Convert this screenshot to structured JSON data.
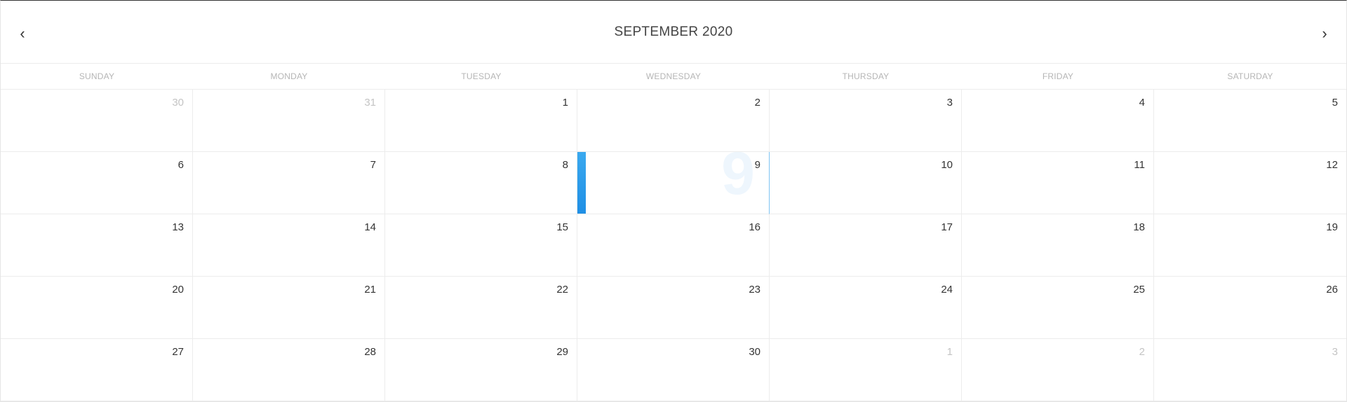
{
  "header": {
    "title": "SEPTEMBER 2020",
    "prev_icon": "chevron-left-icon",
    "next_icon": "chevron-right-icon"
  },
  "weekdays": [
    "SUNDAY",
    "MONDAY",
    "TUESDAY",
    "WEDNESDAY",
    "THURSDAY",
    "FRIDAY",
    "SATURDAY"
  ],
  "days": [
    {
      "label": "30",
      "muted": true
    },
    {
      "label": "31",
      "muted": true
    },
    {
      "label": "1"
    },
    {
      "label": "2"
    },
    {
      "label": "3"
    },
    {
      "label": "4"
    },
    {
      "label": "5"
    },
    {
      "label": "6"
    },
    {
      "label": "7"
    },
    {
      "label": "8"
    },
    {
      "label": "9",
      "selected": true
    },
    {
      "label": "10"
    },
    {
      "label": "11"
    },
    {
      "label": "12"
    },
    {
      "label": "13"
    },
    {
      "label": "14"
    },
    {
      "label": "15"
    },
    {
      "label": "16"
    },
    {
      "label": "17"
    },
    {
      "label": "18"
    },
    {
      "label": "19"
    },
    {
      "label": "20"
    },
    {
      "label": "21"
    },
    {
      "label": "22"
    },
    {
      "label": "23"
    },
    {
      "label": "24"
    },
    {
      "label": "25"
    },
    {
      "label": "26"
    },
    {
      "label": "27"
    },
    {
      "label": "28"
    },
    {
      "label": "29"
    },
    {
      "label": "30"
    },
    {
      "label": "1",
      "muted": true
    },
    {
      "label": "2",
      "muted": true
    },
    {
      "label": "3",
      "muted": true
    }
  ],
  "colors": {
    "accent": "#1f8fe5",
    "muted_text": "#c4c4c4",
    "weekday_text": "#b5b5b5"
  }
}
